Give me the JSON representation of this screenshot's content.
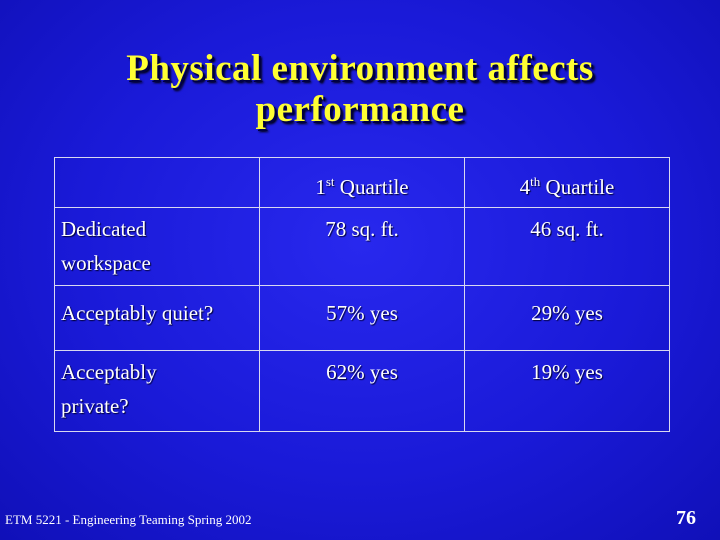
{
  "slide": {
    "title_line1": "Physical environment affects",
    "title_line2": "performance"
  },
  "table": {
    "headers": {
      "empty": "",
      "col1_num": "1",
      "col1_sup": "st",
      "col1_rest": " Quartile",
      "col2_num": "4",
      "col2_sup": "th",
      "col2_rest": " Quartile"
    },
    "rows": [
      {
        "label_line1": "Dedicated",
        "label_line2": "workspace",
        "q1": "78 sq. ft.",
        "q4": "46 sq. ft."
      },
      {
        "label_line1": "Acceptably quiet?",
        "label_line2": "",
        "q1": "57% yes",
        "q4": "29% yes"
      },
      {
        "label_line1": "Acceptably",
        "label_line2": "private?",
        "q1": "62% yes",
        "q4": "19% yes"
      }
    ]
  },
  "footer": {
    "course": "ETM 5221 - Engineering Teaming Spring 2002",
    "page_number": "76"
  },
  "colors": {
    "background": "#1a1ad6",
    "title": "#ffff33",
    "text": "#ffffff"
  }
}
